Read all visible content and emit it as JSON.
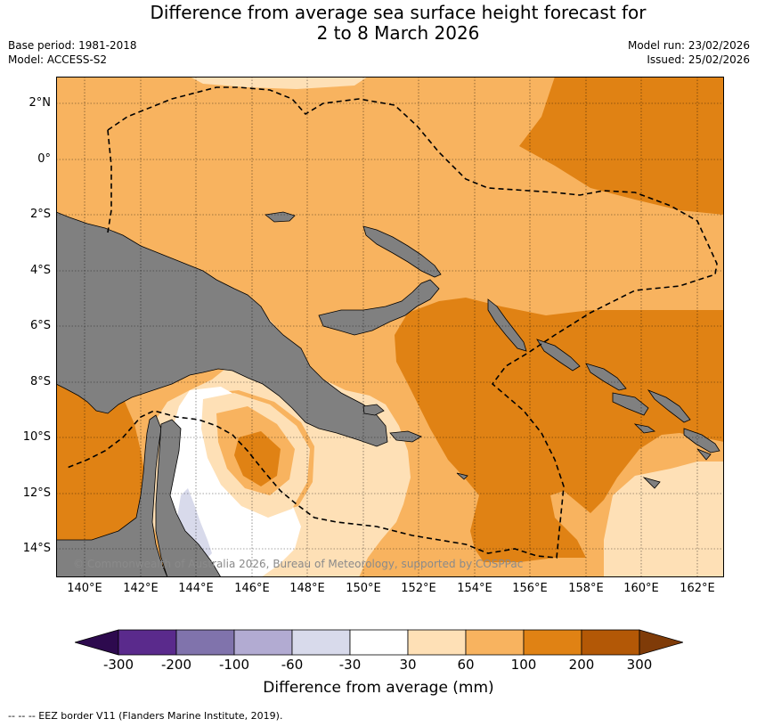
{
  "title_line1": "Difference from average sea surface height forecast for",
  "title_line2": "2 to 8 March 2026",
  "base_period": "Base period: 1981-2018",
  "model": "Model: ACCESS-S2",
  "model_run": "Model run: 23/02/2026",
  "issued": "Issued: 25/02/2026",
  "copyright": "© Commonwealth of Australia 2026, Bureau of Meteorology, supported by COSPPac",
  "footnote": "--  --  -- EEZ border V11 (Flanders Marine Institute, 2019).",
  "lat_labels": [
    "2°N",
    "0°",
    "2°S",
    "4°S",
    "6°S",
    "8°S",
    "10°S",
    "12°S",
    "14°S"
  ],
  "lon_labels": [
    "140°E",
    "142°E",
    "144°E",
    "146°E",
    "148°E",
    "150°E",
    "152°E",
    "154°E",
    "156°E",
    "158°E",
    "160°E",
    "162°E"
  ],
  "legend": {
    "label": "Difference from average (mm)",
    "ticks": [
      "-300",
      "-200",
      "-100",
      "-60",
      "-30",
      "30",
      "60",
      "100",
      "200",
      "300"
    ],
    "colors": {
      "below_-300": "#2d0a4e",
      "-300_-200": "#5a2a8c",
      "-200_-100": "#8073ac",
      "-100_-60": "#b2abd2",
      "-60_-30": "#d8daeb",
      "-30_30": "#ffffff",
      "30_60": "#fee0b6",
      "60_100": "#f8b35f",
      "100_200": "#e08214",
      "200_300": "#b35806",
      "above_300": "#7f3b08"
    }
  },
  "land_color": "#808080"
}
